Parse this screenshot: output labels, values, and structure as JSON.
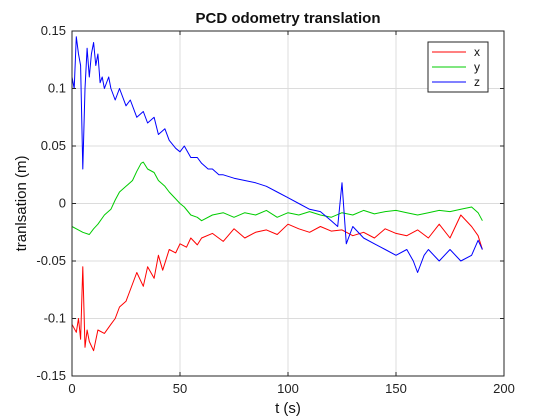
{
  "chart_data": {
    "type": "line",
    "title": "PCD odometry translation",
    "xlabel": "t (s)",
    "ylabel": "tranlsation (m)",
    "xlim": [
      0,
      200
    ],
    "ylim": [
      -0.15,
      0.15
    ],
    "xticks": [
      0,
      50,
      100,
      150,
      200
    ],
    "xtick_labels": [
      "0",
      "50",
      "100",
      "150",
      "200"
    ],
    "yticks": [
      -0.15,
      -0.1,
      -0.05,
      0,
      0.05,
      0.1,
      0.15
    ],
    "ytick_labels": [
      "-0.15",
      "-0.1",
      "-0.05",
      "0",
      "0.05",
      "0.1",
      "0.15"
    ],
    "grid": true,
    "legend_position": "top-right",
    "series": [
      {
        "name": "x",
        "color": "#ff0000",
        "x": [
          0,
          2,
          3,
          4,
          5,
          6,
          7,
          8,
          10,
          12,
          15,
          18,
          20,
          22,
          25,
          28,
          30,
          33,
          35,
          38,
          40,
          42,
          45,
          48,
          50,
          53,
          55,
          58,
          60,
          65,
          70,
          75,
          80,
          85,
          90,
          95,
          100,
          105,
          110,
          115,
          120,
          125,
          130,
          135,
          140,
          145,
          150,
          155,
          160,
          165,
          170,
          175,
          180,
          185,
          188,
          190
        ],
        "y": [
          -0.105,
          -0.112,
          -0.1,
          -0.118,
          -0.055,
          -0.125,
          -0.11,
          -0.12,
          -0.128,
          -0.11,
          -0.113,
          -0.105,
          -0.1,
          -0.09,
          -0.085,
          -0.07,
          -0.06,
          -0.072,
          -0.055,
          -0.065,
          -0.045,
          -0.058,
          -0.04,
          -0.043,
          -0.035,
          -0.038,
          -0.03,
          -0.036,
          -0.03,
          -0.026,
          -0.033,
          -0.022,
          -0.03,
          -0.025,
          -0.023,
          -0.027,
          -0.018,
          -0.022,
          -0.025,
          -0.02,
          -0.024,
          -0.023,
          -0.028,
          -0.025,
          -0.03,
          -0.022,
          -0.026,
          -0.028,
          -0.023,
          -0.03,
          -0.018,
          -0.03,
          -0.01,
          -0.02,
          -0.028,
          -0.04
        ]
      },
      {
        "name": "y",
        "color": "#00cc00",
        "x": [
          0,
          2,
          5,
          8,
          10,
          12,
          15,
          18,
          20,
          22,
          25,
          28,
          30,
          32,
          33,
          35,
          38,
          40,
          43,
          45,
          48,
          50,
          52,
          55,
          58,
          60,
          65,
          70,
          75,
          80,
          85,
          90,
          95,
          100,
          105,
          110,
          115,
          120,
          125,
          130,
          135,
          140,
          145,
          150,
          155,
          160,
          165,
          170,
          175,
          180,
          185,
          188,
          190
        ],
        "y": [
          -0.02,
          -0.022,
          -0.025,
          -0.027,
          -0.022,
          -0.018,
          -0.01,
          -0.005,
          0.003,
          0.01,
          0.015,
          0.02,
          0.028,
          0.035,
          0.036,
          0.03,
          0.027,
          0.02,
          0.015,
          0.01,
          0.004,
          0.0,
          -0.003,
          -0.01,
          -0.012,
          -0.015,
          -0.01,
          -0.008,
          -0.012,
          -0.008,
          -0.01,
          -0.006,
          -0.012,
          -0.008,
          -0.01,
          -0.007,
          -0.01,
          -0.012,
          -0.008,
          -0.01,
          -0.006,
          -0.009,
          -0.007,
          -0.006,
          -0.008,
          -0.01,
          -0.008,
          -0.006,
          -0.007,
          -0.005,
          -0.003,
          -0.008,
          -0.015
        ]
      },
      {
        "name": "z",
        "color": "#0000ff",
        "x": [
          0,
          1,
          2,
          3,
          4,
          5,
          6,
          7,
          8,
          9,
          10,
          11,
          12,
          13,
          14,
          15,
          17,
          18,
          20,
          22,
          25,
          27,
          30,
          33,
          35,
          38,
          40,
          43,
          45,
          48,
          50,
          52,
          55,
          58,
          60,
          63,
          65,
          68,
          70,
          75,
          80,
          85,
          90,
          95,
          100,
          105,
          110,
          115,
          120,
          123,
          125,
          127,
          130,
          135,
          140,
          145,
          150,
          155,
          158,
          160,
          163,
          165,
          170,
          175,
          180,
          185,
          188,
          190
        ],
        "y": [
          0.11,
          0.1,
          0.145,
          0.13,
          0.12,
          0.03,
          0.1,
          0.135,
          0.11,
          0.13,
          0.14,
          0.12,
          0.13,
          0.105,
          0.11,
          0.1,
          0.11,
          0.1,
          0.09,
          0.1,
          0.085,
          0.09,
          0.075,
          0.08,
          0.07,
          0.075,
          0.06,
          0.065,
          0.055,
          0.048,
          0.045,
          0.05,
          0.04,
          0.04,
          0.035,
          0.03,
          0.03,
          0.025,
          0.025,
          0.022,
          0.02,
          0.018,
          0.015,
          0.01,
          0.005,
          0.0,
          -0.005,
          -0.007,
          -0.015,
          -0.02,
          0.018,
          -0.035,
          -0.02,
          -0.03,
          -0.035,
          -0.04,
          -0.045,
          -0.04,
          -0.05,
          -0.06,
          -0.045,
          -0.04,
          -0.05,
          -0.04,
          -0.05,
          -0.045,
          -0.032,
          -0.04
        ]
      }
    ]
  }
}
